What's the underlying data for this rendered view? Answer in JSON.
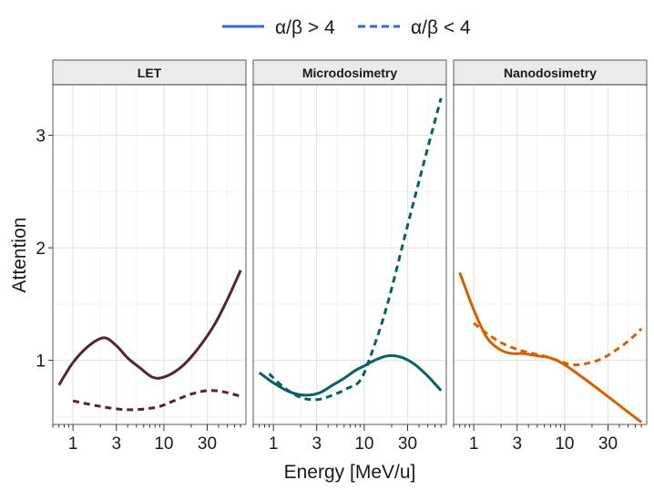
{
  "chart_data": {
    "type": "line",
    "xlabel": "Energy [MeV/u]",
    "ylabel": "Attention",
    "x_scale": "log10",
    "xlim": [
      0.6,
      80
    ],
    "ylim": [
      0.43,
      3.45
    ],
    "x_ticks": [
      1,
      3,
      10,
      30
    ],
    "x_tick_labels": [
      "1",
      "3",
      "10",
      "30"
    ],
    "y_ticks": [
      1,
      2,
      3
    ],
    "y_tick_labels": [
      "1",
      "2",
      "3"
    ],
    "grid": true,
    "legend": {
      "position": "top",
      "color": "#3366e6",
      "entries": [
        {
          "label": "α/β > 4",
          "linetype": "solid"
        },
        {
          "label": "α/β < 4",
          "linetype": "dashed"
        }
      ]
    },
    "panels": [
      {
        "title": "LET",
        "color": "#4f2633",
        "series": [
          {
            "name": "α/β > 4",
            "linetype": "solid",
            "x": [
              0.7,
              1.0,
              1.5,
              2.2,
              3.0,
              4.0,
              5.5,
              7.5,
              10,
              15,
              22,
              35,
              50,
              70
            ],
            "y": [
              0.78,
              0.98,
              1.13,
              1.2,
              1.13,
              1.02,
              0.93,
              0.85,
              0.85,
              0.93,
              1.07,
              1.3,
              1.54,
              1.8
            ]
          },
          {
            "name": "α/β < 4",
            "linetype": "dashed",
            "x": [
              1.0,
              2.0,
              4.0,
              8.0,
              12,
              20,
              30,
              45,
              70
            ],
            "y": [
              0.64,
              0.59,
              0.56,
              0.58,
              0.63,
              0.7,
              0.73,
              0.72,
              0.68
            ]
          }
        ]
      },
      {
        "title": "Microdosimetry",
        "color": "#0a6060",
        "series": [
          {
            "name": "α/β > 4",
            "linetype": "solid",
            "x": [
              0.7,
              1.0,
              1.5,
              2.2,
              3.2,
              4.5,
              6.0,
              8.0,
              10,
              13,
              18,
              25,
              35,
              50,
              70
            ],
            "y": [
              0.89,
              0.8,
              0.72,
              0.69,
              0.71,
              0.78,
              0.84,
              0.91,
              0.95,
              1.0,
              1.04,
              1.03,
              0.97,
              0.86,
              0.73
            ]
          },
          {
            "name": "α/β < 4",
            "linetype": "dashed",
            "x": [
              0.9,
              1.3,
              2.0,
              3.0,
              4.5,
              6.5,
              9.0,
              12,
              18,
              30,
              45,
              70
            ],
            "y": [
              0.88,
              0.76,
              0.67,
              0.65,
              0.69,
              0.75,
              0.82,
              1.06,
              1.5,
              2.2,
              2.75,
              3.33
            ]
          }
        ]
      },
      {
        "title": "Nanodosimetry",
        "color": "#d65f00",
        "series": [
          {
            "name": "α/β > 4",
            "linetype": "solid",
            "x": [
              0.7,
              1.0,
              1.4,
              2.0,
              2.7,
              3.5,
              5.0,
              7.0,
              10,
              15,
              22,
              32,
              48,
              70
            ],
            "y": [
              1.78,
              1.45,
              1.2,
              1.09,
              1.06,
              1.06,
              1.04,
              1.02,
              0.96,
              0.86,
              0.76,
              0.66,
              0.55,
              0.45
            ]
          },
          {
            "name": "α/β < 4",
            "linetype": "dashed",
            "x": [
              1.0,
              1.5,
              2.2,
              3.2,
              4.5,
              6.5,
              9.0,
              12,
              17,
              25,
              35,
              50,
              70
            ],
            "y": [
              1.33,
              1.22,
              1.14,
              1.09,
              1.06,
              1.03,
              0.99,
              0.96,
              0.97,
              1.01,
              1.08,
              1.17,
              1.28
            ]
          }
        ]
      }
    ]
  }
}
